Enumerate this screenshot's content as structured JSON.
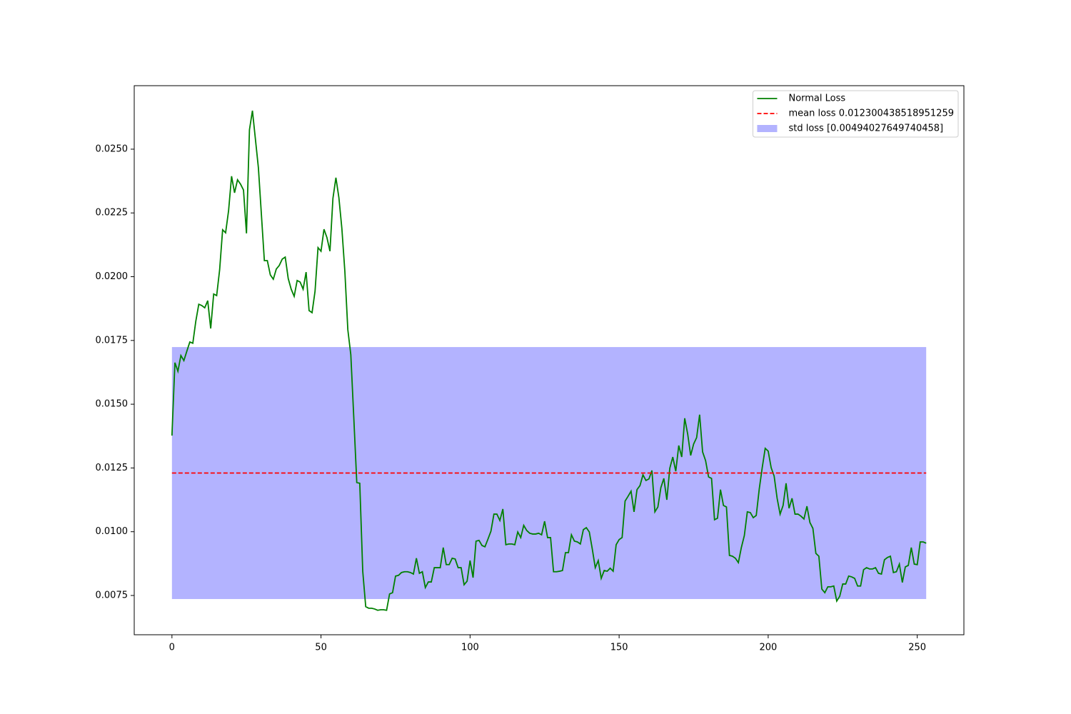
{
  "chart_data": {
    "type": "line",
    "x": [
      0,
      1,
      2,
      3,
      4,
      5,
      6,
      7,
      8,
      9,
      10,
      11,
      12,
      13,
      14,
      15,
      16,
      17,
      18,
      19,
      20,
      21,
      22,
      23,
      24,
      25,
      26,
      27,
      28,
      29,
      30,
      31,
      32,
      33,
      34,
      35,
      36,
      37,
      38,
      39,
      40,
      41,
      42,
      43,
      44,
      45,
      46,
      47,
      48,
      49,
      50,
      51,
      52,
      53,
      54,
      55,
      56,
      57,
      58,
      59,
      60,
      61,
      62,
      63,
      64,
      65,
      66,
      67,
      68,
      69,
      70,
      71,
      72,
      73,
      74,
      75,
      76,
      77,
      78,
      79,
      80,
      81,
      82,
      83,
      84,
      85,
      86,
      87,
      88,
      89,
      90,
      91,
      92,
      93,
      94,
      95,
      96,
      97,
      98,
      99,
      100,
      101,
      102,
      103,
      104,
      105,
      106,
      107,
      108,
      109,
      110,
      111,
      112,
      113,
      114,
      115,
      116,
      117,
      118,
      119,
      120,
      121,
      122,
      123,
      124,
      125,
      126,
      127,
      128,
      129,
      130,
      131,
      132,
      133,
      134,
      135,
      136,
      137,
      138,
      139,
      140,
      141,
      142,
      143,
      144,
      145,
      146,
      147,
      148,
      149,
      150,
      151,
      152,
      153,
      154,
      155,
      156,
      157,
      158,
      159,
      160,
      161,
      162,
      163,
      164,
      165,
      166,
      167,
      168,
      169,
      170,
      171,
      172,
      173,
      174,
      175,
      176,
      177,
      178,
      179,
      180,
      181,
      182,
      183,
      184,
      185,
      186,
      187,
      188,
      189,
      190,
      191,
      192,
      193,
      194,
      195,
      196,
      197,
      198,
      199,
      200,
      201,
      202,
      203,
      204,
      205,
      206,
      207,
      208,
      209,
      210,
      211,
      212,
      213,
      214,
      215,
      216,
      217,
      218,
      219,
      220,
      221,
      222,
      223,
      224,
      225,
      226,
      227,
      228,
      229,
      230,
      231,
      232,
      233,
      234,
      235,
      236,
      237,
      238,
      239,
      240,
      241,
      242,
      243,
      244,
      245,
      246,
      247,
      248,
      249,
      250,
      251,
      252,
      253
    ],
    "series": [
      {
        "name": "Normal Loss",
        "color": "#008000",
        "values": [
          0.01377,
          0.01663,
          0.01629,
          0.01691,
          0.01671,
          0.01708,
          0.01744,
          0.01739,
          0.01825,
          0.01892,
          0.01887,
          0.01878,
          0.01906,
          0.01797,
          0.01932,
          0.01926,
          0.02027,
          0.02184,
          0.02172,
          0.02259,
          0.02394,
          0.02329,
          0.0238,
          0.02363,
          0.0234,
          0.0217,
          0.02576,
          0.02651,
          0.02539,
          0.02427,
          0.02245,
          0.02063,
          0.02063,
          0.02007,
          0.0199,
          0.0203,
          0.02044,
          0.02069,
          0.02077,
          0.01993,
          0.01951,
          0.01923,
          0.01985,
          0.01979,
          0.01951,
          0.02018,
          0.01867,
          0.01859,
          0.01943,
          0.02114,
          0.021,
          0.02186,
          0.02153,
          0.021,
          0.02307,
          0.02388,
          0.0231,
          0.02189,
          0.02021,
          0.01792,
          0.01694,
          0.01447,
          0.01193,
          0.0119,
          0.00845,
          0.00706,
          0.007,
          0.007,
          0.00697,
          0.00692,
          0.00694,
          0.00694,
          0.00692,
          0.00756,
          0.00761,
          0.00826,
          0.00829,
          0.0084,
          0.00843,
          0.00843,
          0.0084,
          0.00834,
          0.00896,
          0.00837,
          0.00843,
          0.00781,
          0.00803,
          0.00803,
          0.00859,
          0.00859,
          0.00859,
          0.00938,
          0.00871,
          0.00871,
          0.00896,
          0.00893,
          0.00859,
          0.00859,
          0.00792,
          0.00806,
          0.00887,
          0.0082,
          0.00963,
          0.00966,
          0.00946,
          0.00941,
          0.00971,
          0.01002,
          0.01069,
          0.01069,
          0.01044,
          0.01089,
          0.00949,
          0.00952,
          0.00952,
          0.00949,
          0.00999,
          0.00977,
          0.01025,
          0.01005,
          0.00994,
          0.00991,
          0.00991,
          0.00994,
          0.00988,
          0.01041,
          0.00977,
          0.00977,
          0.00843,
          0.00843,
          0.00845,
          0.00848,
          0.00918,
          0.00918,
          0.00988,
          0.00963,
          0.0096,
          0.00952,
          0.01008,
          0.01016,
          0.00999,
          0.00932,
          0.00859,
          0.00887,
          0.00817,
          0.00848,
          0.00845,
          0.00857,
          0.00845,
          0.00949,
          0.00969,
          0.00977,
          0.0112,
          0.01139,
          0.01159,
          0.01078,
          0.01165,
          0.01181,
          0.01223,
          0.01201,
          0.01207,
          0.0124,
          0.01078,
          0.01097,
          0.01173,
          0.01209,
          0.01125,
          0.01249,
          0.01293,
          0.01237,
          0.01338,
          0.01293,
          0.01445,
          0.01383,
          0.01299,
          0.01344,
          0.01369,
          0.01459,
          0.01313,
          0.01279,
          0.01215,
          0.01209,
          0.01047,
          0.01053,
          0.01165,
          0.01103,
          0.01097,
          0.00907,
          0.00904,
          0.00896,
          0.00879,
          0.00938,
          0.00985,
          0.01078,
          0.01075,
          0.01055,
          0.01064,
          0.01167,
          0.01251,
          0.01327,
          0.01316,
          0.01251,
          0.01218,
          0.01131,
          0.01069,
          0.01103,
          0.0119,
          0.01092,
          0.01131,
          0.01069,
          0.01069,
          0.01061,
          0.0105,
          0.011,
          0.01036,
          0.01013,
          0.00915,
          0.00904,
          0.00775,
          0.00761,
          0.00784,
          0.00784,
          0.00787,
          0.00728,
          0.00747,
          0.00795,
          0.00795,
          0.00826,
          0.00823,
          0.00817,
          0.00787,
          0.00787,
          0.00851,
          0.00859,
          0.00854,
          0.00854,
          0.00859,
          0.00837,
          0.00834,
          0.0089,
          0.00899,
          0.00904,
          0.0084,
          0.00843,
          0.00873,
          0.00801,
          0.00862,
          0.00868,
          0.00938,
          0.00873,
          0.00871,
          0.0096,
          0.0096,
          0.00955
        ]
      }
    ],
    "mean_line": {
      "name": "mean loss 0.012300438518951259",
      "value": 0.012300438518951259,
      "color": "#ff0000"
    },
    "std_band": {
      "name": "std loss [0.00494027649740458]",
      "value": 0.00494027649740458,
      "color": "#b3b3ff"
    },
    "xlim": [
      -12.65,
      265.65
    ],
    "xticks": [
      0,
      50,
      100,
      150,
      200,
      250
    ],
    "ylim": [
      0.00596,
      0.02749
    ],
    "yticks": [
      0.0075,
      {
        "value": 0.01,
        "label": "0.0100"
      },
      0.0125,
      {
        "value": 0.015,
        "label": "0.0150"
      },
      0.0175,
      {
        "value": 0.02,
        "label": "0.0200"
      },
      0.0225,
      {
        "value": 0.025,
        "label": "0.0250"
      }
    ],
    "grid": false,
    "legend": "upper right"
  }
}
